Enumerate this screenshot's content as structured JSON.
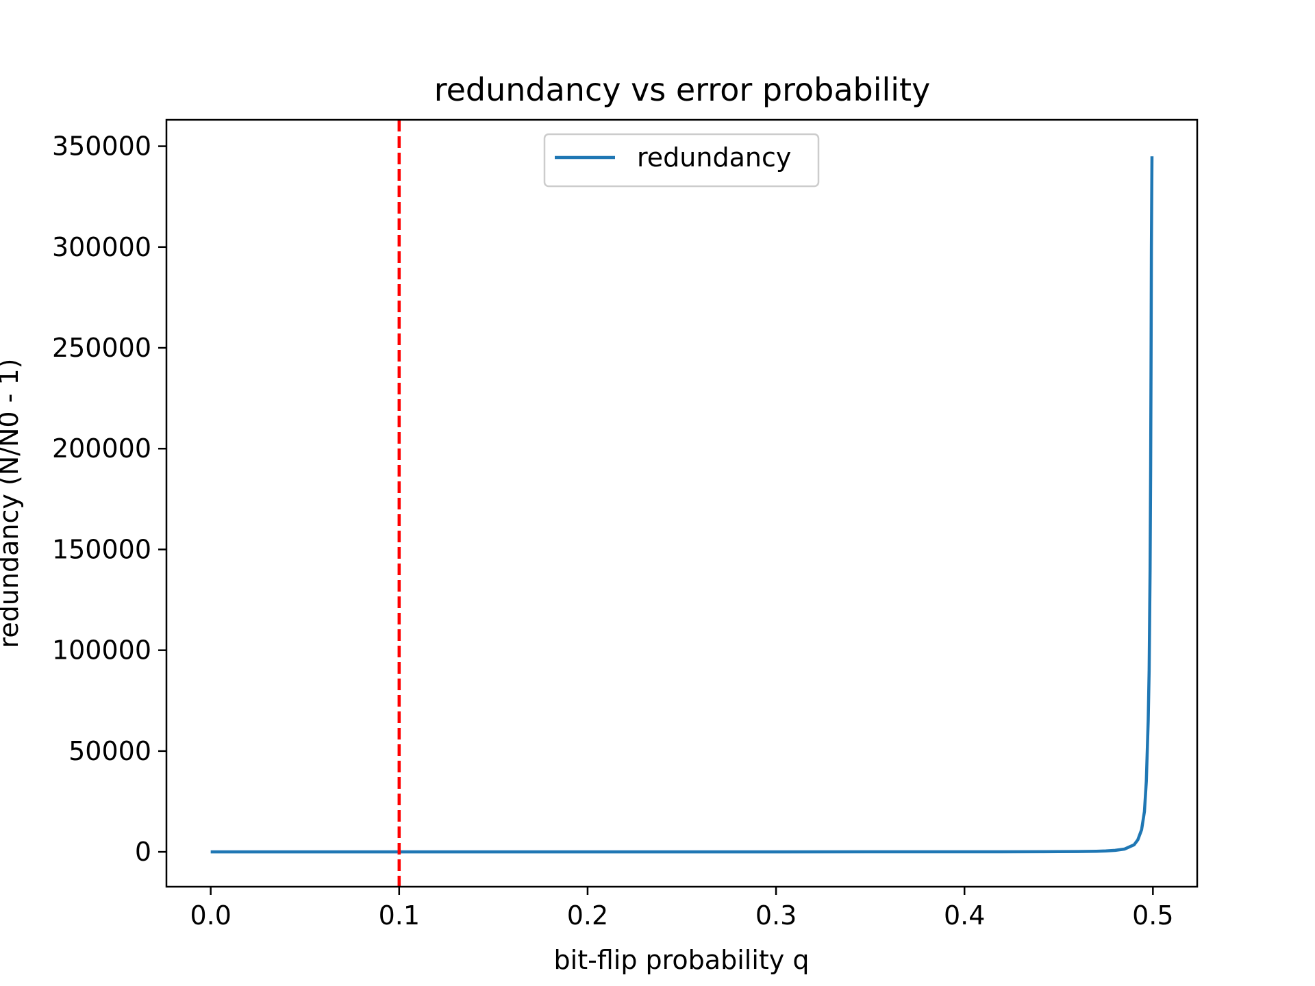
{
  "chart_data": {
    "type": "line",
    "title": "redundancy vs error probability",
    "xlabel": "bit-flip probability q",
    "ylabel": "redundancy (N/N0 - 1)",
    "xlim": [
      -0.0235,
      0.5235
    ],
    "ylim": [
      -17290,
      363100
    ],
    "x_ticks": [
      0.0,
      0.1,
      0.2,
      0.3,
      0.4,
      0.5
    ],
    "x_tick_labels": [
      "0.0",
      "0.1",
      "0.2",
      "0.3",
      "0.4",
      "0.5"
    ],
    "y_ticks": [
      0,
      50000,
      100000,
      150000,
      200000,
      250000,
      300000,
      350000
    ],
    "y_tick_labels": [
      "0",
      "50000",
      "100000",
      "150000",
      "200000",
      "250000",
      "300000",
      "350000"
    ],
    "grid": false,
    "legend": {
      "position": "upper center",
      "entries": [
        "redundancy"
      ]
    },
    "series": [
      {
        "name": "redundancy",
        "color": "#1f77b4",
        "x": [
          0.0,
          0.05,
          0.1,
          0.15,
          0.2,
          0.25,
          0.3,
          0.35,
          0.4,
          0.42,
          0.44,
          0.45,
          0.46,
          0.47,
          0.475,
          0.48,
          0.485,
          0.49,
          0.492,
          0.494,
          0.4955,
          0.4965,
          0.4975,
          0.498,
          0.4985,
          0.4988,
          0.499,
          0.4992,
          0.4995
        ],
        "y": [
          0,
          0.4,
          0.9,
          1.5,
          2.4,
          4,
          7,
          13,
          27,
          40,
          70,
          100,
          160,
          300,
          450,
          750,
          1400,
          3500,
          6000,
          11000,
          20000,
          35000,
          65000,
          90000,
          140000,
          190000,
          240000,
          300000,
          345000
        ]
      }
    ],
    "reference_lines": [
      {
        "orientation": "vertical",
        "x": 0.1,
        "color": "#ff0000",
        "style": "dashed"
      }
    ]
  }
}
